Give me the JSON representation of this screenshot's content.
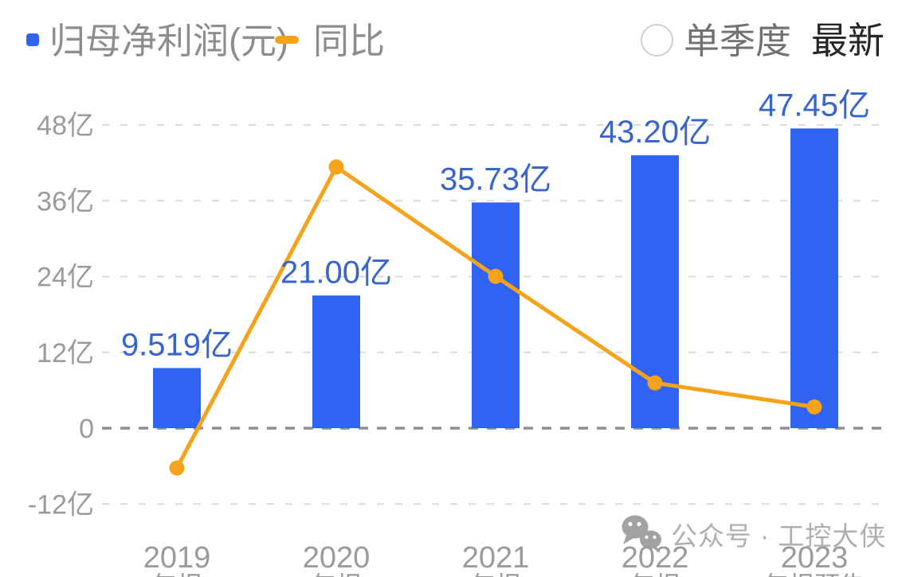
{
  "header": {
    "legend_bar_label": "归母净利润(元)",
    "legend_line_label": "同比",
    "single_quarter_label": "单季度",
    "single_quarter_checked": false,
    "latest_label": "最新"
  },
  "watermark": {
    "icon": "wechat-icon",
    "text": "公众号 · 工控大侠"
  },
  "colors": {
    "bar": "#2E63F6",
    "line": "#F5A31B",
    "value_label": "#3765CB",
    "axis_text": "#9B9B9B",
    "grid": "#DBDBDB",
    "zero_line": "#8F8F8F",
    "legend_text": "#8D8D8D",
    "latest_text": "#262626",
    "watermark": "#A9A9A9"
  },
  "chart_data": {
    "type": "combo",
    "categories": [
      "2019",
      "2020",
      "2021",
      "2022",
      "2023"
    ],
    "category_sub_labels": [
      "年报",
      "年报",
      "年报",
      "年报",
      "年报预告"
    ],
    "series": [
      {
        "name": "归母净利润(元)",
        "type": "bar",
        "unit": "亿",
        "values": [
          9.519,
          21.0,
          35.73,
          43.2,
          47.45
        ],
        "labels": [
          "9.519亿",
          "21.00亿",
          "35.73亿",
          "43.20亿",
          "47.45亿"
        ]
      },
      {
        "name": "同比",
        "type": "line",
        "unit": "%",
        "values": [
          -18.4,
          120.6,
          70.1,
          20.9,
          9.8
        ]
      }
    ],
    "y_axis": {
      "tick_labels": [
        "48亿",
        "36亿",
        "24亿",
        "12亿",
        "0",
        "-12亿"
      ],
      "tick_values": [
        48,
        36,
        24,
        12,
        0,
        -12
      ],
      "ylim": [
        -24,
        57
      ]
    },
    "y2_axis": {
      "visible": false,
      "pct_per_gridline": 35
    },
    "grid": "dashed-horizontal",
    "legend_position": "top-left"
  }
}
